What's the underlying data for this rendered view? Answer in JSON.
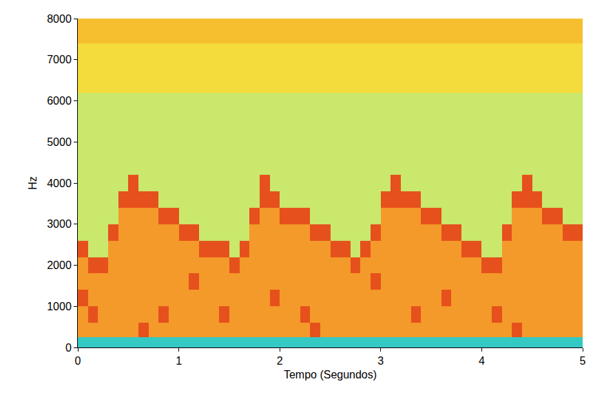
{
  "chart_data": {
    "type": "heatmap",
    "xlabel": "Tempo (Segundos)",
    "ylabel": "Hz",
    "xlim": [
      0,
      5
    ],
    "ylim": [
      0,
      8000
    ],
    "xticks": [
      0,
      1,
      2,
      3,
      4,
      5
    ],
    "yticks": [
      0,
      1000,
      2000,
      3000,
      4000,
      5000,
      6000,
      7000,
      8000
    ],
    "grid": false,
    "zlim": [
      0,
      5
    ],
    "x": [
      0.05,
      0.15,
      0.25,
      0.35,
      0.45,
      0.55,
      0.65,
      0.75,
      0.85,
      0.95,
      1.05,
      1.15,
      1.25,
      1.35,
      1.45,
      1.55,
      1.65,
      1.75,
      1.85,
      1.95,
      2.05,
      2.15,
      2.25,
      2.35,
      2.45,
      2.55,
      2.65,
      2.75,
      2.85,
      2.95,
      3.05,
      3.15,
      3.25,
      3.35,
      3.45,
      3.55,
      3.65,
      3.75,
      3.85,
      3.95,
      4.05,
      4.15,
      4.25,
      4.35,
      4.45,
      4.55,
      4.65,
      4.75,
      4.85,
      4.95
    ],
    "y": [
      100,
      400,
      800,
      1200,
      1600,
      2000,
      2400,
      2800,
      3200,
      3600,
      4000,
      4400,
      4800,
      5200,
      5600,
      6000,
      6400,
      6800,
      7200,
      7600,
      8000
    ],
    "z": [
      [
        0,
        0,
        0,
        0,
        0,
        0,
        0,
        0,
        0,
        0,
        0,
        0,
        0,
        0,
        0,
        0,
        0,
        0,
        0,
        0,
        0,
        0,
        0,
        0,
        0,
        0,
        0,
        0,
        0,
        0,
        0,
        0,
        0,
        0,
        0,
        0,
        0,
        0,
        0,
        0,
        0,
        0,
        0,
        0,
        0,
        0,
        0,
        0,
        0,
        0
      ],
      [
        4,
        4,
        4,
        4,
        4,
        4,
        5,
        4,
        4,
        4,
        4,
        4,
        4,
        4,
        4,
        4,
        4,
        4,
        4,
        4,
        4,
        4,
        4,
        5,
        4,
        4,
        4,
        4,
        4,
        4,
        4,
        4,
        4,
        4,
        4,
        4,
        4,
        4,
        4,
        4,
        4,
        4,
        4,
        5,
        4,
        4,
        4,
        4,
        4,
        4
      ],
      [
        4,
        5,
        4,
        4,
        4,
        4,
        4,
        4,
        5,
        4,
        4,
        4,
        4,
        4,
        5,
        4,
        4,
        4,
        4,
        4,
        4,
        4,
        5,
        4,
        4,
        4,
        4,
        4,
        4,
        4,
        4,
        4,
        4,
        5,
        4,
        4,
        4,
        4,
        4,
        4,
        4,
        5,
        4,
        4,
        4,
        4,
        4,
        4,
        4,
        4
      ],
      [
        5,
        4,
        4,
        4,
        4,
        4,
        4,
        4,
        4,
        4,
        4,
        4,
        4,
        4,
        4,
        4,
        4,
        4,
        4,
        5,
        4,
        4,
        4,
        4,
        4,
        4,
        4,
        4,
        4,
        4,
        4,
        4,
        4,
        4,
        4,
        4,
        5,
        4,
        4,
        4,
        4,
        4,
        4,
        4,
        4,
        4,
        4,
        4,
        4,
        4
      ],
      [
        4,
        4,
        4,
        4,
        4,
        4,
        4,
        4,
        4,
        4,
        4,
        5,
        4,
        4,
        4,
        4,
        4,
        4,
        4,
        4,
        4,
        4,
        4,
        4,
        4,
        4,
        4,
        4,
        4,
        5,
        4,
        4,
        4,
        4,
        4,
        4,
        4,
        4,
        4,
        4,
        4,
        4,
        4,
        4,
        4,
        4,
        4,
        4,
        4,
        4
      ],
      [
        4,
        5,
        5,
        4,
        4,
        4,
        4,
        4,
        4,
        4,
        4,
        4,
        4,
        4,
        4,
        5,
        4,
        4,
        4,
        4,
        4,
        4,
        4,
        4,
        4,
        4,
        4,
        5,
        4,
        4,
        4,
        4,
        4,
        4,
        4,
        4,
        4,
        4,
        4,
        4,
        5,
        5,
        4,
        4,
        4,
        4,
        4,
        4,
        4,
        4
      ],
      [
        5,
        1,
        1,
        4,
        4,
        4,
        4,
        4,
        4,
        4,
        4,
        4,
        5,
        5,
        5,
        1,
        5,
        4,
        4,
        4,
        4,
        4,
        4,
        4,
        4,
        5,
        5,
        1,
        5,
        4,
        4,
        4,
        4,
        4,
        4,
        4,
        4,
        4,
        5,
        5,
        1,
        1,
        4,
        4,
        4,
        4,
        4,
        4,
        4,
        4
      ],
      [
        1,
        1,
        1,
        5,
        4,
        4,
        4,
        4,
        4,
        4,
        5,
        5,
        1,
        1,
        1,
        1,
        1,
        4,
        4,
        4,
        4,
        4,
        4,
        5,
        5,
        1,
        1,
        1,
        1,
        5,
        4,
        4,
        4,
        4,
        4,
        4,
        5,
        5,
        1,
        1,
        1,
        1,
        5,
        4,
        4,
        4,
        4,
        4,
        5,
        5
      ],
      [
        1,
        1,
        1,
        1,
        4,
        4,
        4,
        4,
        5,
        5,
        1,
        1,
        1,
        1,
        1,
        1,
        1,
        5,
        4,
        4,
        5,
        5,
        5,
        1,
        1,
        1,
        1,
        1,
        1,
        1,
        4,
        4,
        4,
        4,
        5,
        5,
        1,
        1,
        1,
        1,
        1,
        1,
        1,
        4,
        4,
        4,
        5,
        5,
        1,
        1
      ],
      [
        1,
        1,
        1,
        1,
        5,
        5,
        5,
        5,
        1,
        1,
        1,
        1,
        1,
        1,
        1,
        1,
        1,
        1,
        5,
        5,
        1,
        1,
        1,
        1,
        1,
        1,
        1,
        1,
        1,
        1,
        5,
        5,
        5,
        5,
        1,
        1,
        1,
        1,
        1,
        1,
        1,
        1,
        1,
        5,
        5,
        5,
        1,
        1,
        1,
        1
      ],
      [
        1,
        1,
        1,
        1,
        1,
        5,
        1,
        1,
        1,
        1,
        1,
        1,
        1,
        1,
        1,
        1,
        1,
        1,
        5,
        1,
        1,
        1,
        1,
        1,
        1,
        1,
        1,
        1,
        1,
        1,
        1,
        5,
        1,
        1,
        1,
        1,
        1,
        1,
        1,
        1,
        1,
        1,
        1,
        1,
        5,
        1,
        1,
        1,
        1,
        1
      ],
      [
        1,
        1,
        1,
        1,
        1,
        1,
        1,
        1,
        1,
        1,
        1,
        1,
        1,
        1,
        1,
        1,
        1,
        1,
        1,
        1,
        1,
        1,
        1,
        1,
        1,
        1,
        1,
        1,
        1,
        1,
        1,
        1,
        1,
        1,
        1,
        1,
        1,
        1,
        1,
        1,
        1,
        1,
        1,
        1,
        1,
        1,
        1,
        1,
        1,
        1
      ],
      [
        1,
        1,
        1,
        1,
        1,
        1,
        1,
        1,
        1,
        1,
        1,
        1,
        1,
        1,
        1,
        1,
        1,
        1,
        1,
        1,
        1,
        1,
        1,
        1,
        1,
        1,
        1,
        1,
        1,
        1,
        1,
        1,
        1,
        1,
        1,
        1,
        1,
        1,
        1,
        1,
        1,
        1,
        1,
        1,
        1,
        1,
        1,
        1,
        1,
        1
      ],
      [
        1,
        1,
        1,
        1,
        1,
        1,
        1,
        1,
        1,
        1,
        1,
        1,
        1,
        1,
        1,
        1,
        1,
        1,
        1,
        1,
        1,
        1,
        1,
        1,
        1,
        1,
        1,
        1,
        1,
        1,
        1,
        1,
        1,
        1,
        1,
        1,
        1,
        1,
        1,
        1,
        1,
        1,
        1,
        1,
        1,
        1,
        1,
        1,
        1,
        1
      ],
      [
        1,
        1,
        1,
        1,
        1,
        1,
        1,
        1,
        1,
        1,
        1,
        1,
        1,
        1,
        1,
        1,
        1,
        1,
        1,
        1,
        1,
        1,
        1,
        1,
        1,
        1,
        1,
        1,
        1,
        1,
        1,
        1,
        1,
        1,
        1,
        1,
        1,
        1,
        1,
        1,
        1,
        1,
        1,
        1,
        1,
        1,
        1,
        1,
        1,
        1
      ],
      [
        1,
        1,
        1,
        1,
        1,
        1,
        1,
        1,
        1,
        1,
        1,
        1,
        1,
        1,
        1,
        1,
        1,
        1,
        1,
        1,
        1,
        1,
        1,
        1,
        1,
        1,
        1,
        1,
        1,
        1,
        1,
        1,
        1,
        1,
        1,
        1,
        1,
        1,
        1,
        1,
        1,
        1,
        1,
        1,
        1,
        1,
        1,
        1,
        1,
        1
      ],
      [
        2,
        2,
        2,
        2,
        2,
        2,
        2,
        2,
        2,
        2,
        2,
        2,
        2,
        2,
        2,
        2,
        2,
        2,
        2,
        2,
        2,
        2,
        2,
        2,
        2,
        2,
        2,
        2,
        2,
        2,
        2,
        2,
        2,
        2,
        2,
        2,
        2,
        2,
        2,
        2,
        2,
        2,
        2,
        2,
        2,
        2,
        2,
        2,
        2,
        2
      ],
      [
        2,
        2,
        2,
        2,
        2,
        2,
        2,
        2,
        2,
        2,
        2,
        2,
        2,
        2,
        2,
        2,
        2,
        2,
        2,
        2,
        2,
        2,
        2,
        2,
        2,
        2,
        2,
        2,
        2,
        2,
        2,
        2,
        2,
        2,
        2,
        2,
        2,
        2,
        2,
        2,
        2,
        2,
        2,
        2,
        2,
        2,
        2,
        2,
        2,
        2
      ],
      [
        2,
        2,
        2,
        2,
        2,
        2,
        2,
        2,
        2,
        2,
        2,
        2,
        2,
        2,
        2,
        2,
        2,
        2,
        2,
        2,
        2,
        2,
        2,
        2,
        2,
        2,
        2,
        2,
        2,
        2,
        2,
        2,
        2,
        2,
        2,
        2,
        2,
        2,
        2,
        2,
        2,
        2,
        2,
        2,
        2,
        2,
        2,
        2,
        2,
        2
      ],
      [
        3,
        3,
        3,
        3,
        3,
        3,
        3,
        3,
        3,
        3,
        3,
        3,
        3,
        3,
        3,
        3,
        3,
        3,
        3,
        3,
        3,
        3,
        3,
        3,
        3,
        3,
        3,
        3,
        3,
        3,
        3,
        3,
        3,
        3,
        3,
        3,
        3,
        3,
        3,
        3,
        3,
        3,
        3,
        3,
        3,
        3,
        3,
        3,
        3,
        3
      ],
      [
        3,
        3,
        3,
        3,
        3,
        3,
        3,
        3,
        3,
        3,
        3,
        3,
        3,
        3,
        3,
        3,
        3,
        3,
        3,
        3,
        3,
        3,
        3,
        3,
        3,
        3,
        3,
        3,
        3,
        3,
        3,
        3,
        3,
        3,
        3,
        3,
        3,
        3,
        3,
        3,
        3,
        3,
        3,
        3,
        3,
        3,
        3,
        3,
        3,
        3
      ]
    ]
  }
}
